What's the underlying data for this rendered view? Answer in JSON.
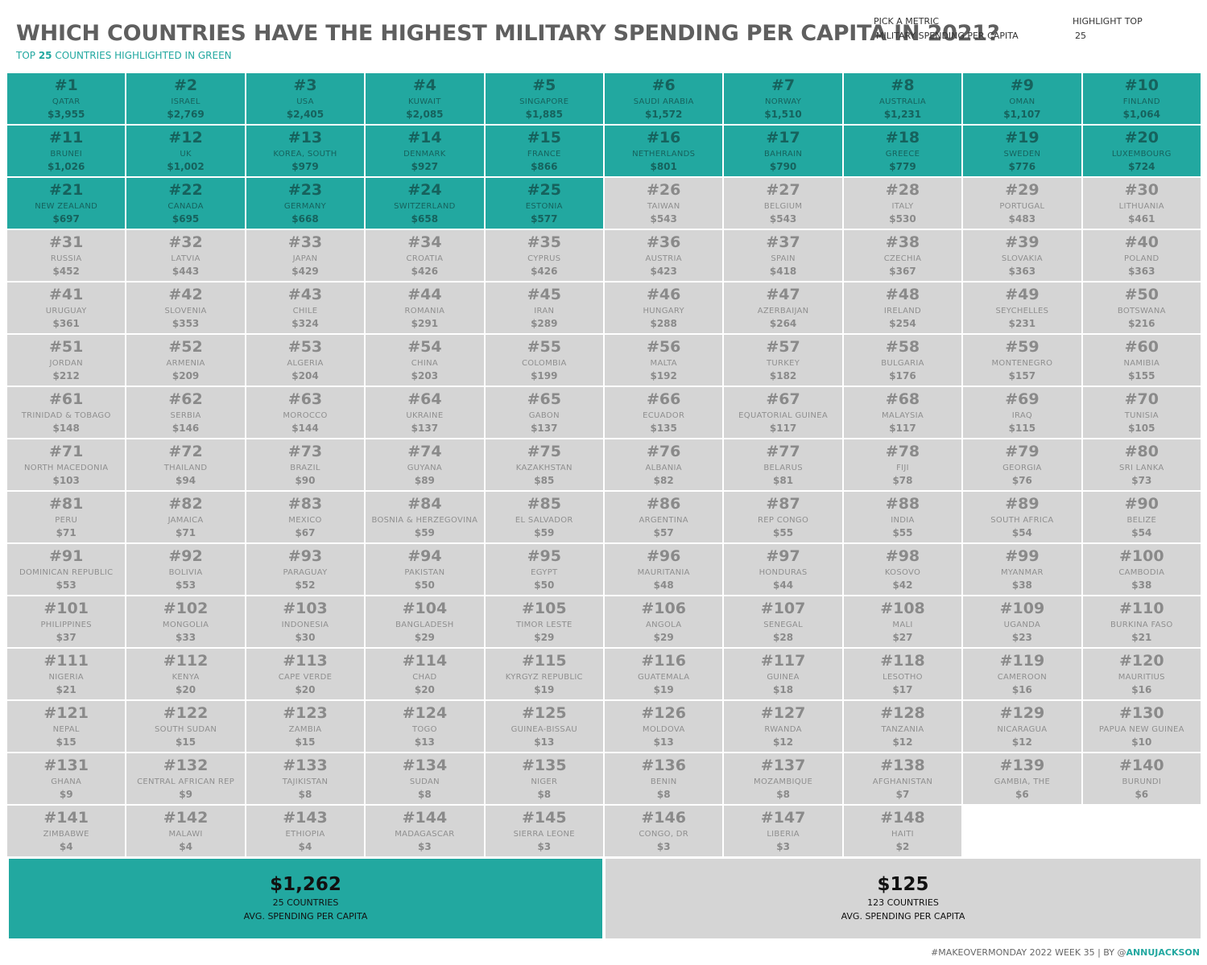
{
  "header": {
    "title": "WHICH COUNTRIES HAVE THE HIGHEST MILITARY SPENDING PER CAPITA IN 2021?",
    "subtitle_prefix": "TOP ",
    "subtitle_count": "25",
    "subtitle_suffix": " COUNTRIES HIGHLIGHTED IN GREEN"
  },
  "controls": {
    "metric_label": "PICK A METRIC",
    "metric_value": "MILITARY SPENDING PER CAPITA",
    "highlight_label": "HIGHLIGHT TOP",
    "highlight_value": "25"
  },
  "colors": {
    "highlight": "#22a8a0",
    "neutral": "#d5d5d5"
  },
  "chart_data": {
    "type": "table",
    "highlight_top": 25,
    "columns": 10,
    "countries": [
      {
        "rank": "#1",
        "name": "QATAR",
        "value": "$3,955"
      },
      {
        "rank": "#2",
        "name": "ISRAEL",
        "value": "$2,769"
      },
      {
        "rank": "#3",
        "name": "USA",
        "value": "$2,405"
      },
      {
        "rank": "#4",
        "name": "KUWAIT",
        "value": "$2,085"
      },
      {
        "rank": "#5",
        "name": "SINGAPORE",
        "value": "$1,885"
      },
      {
        "rank": "#6",
        "name": "SAUDI ARABIA",
        "value": "$1,572"
      },
      {
        "rank": "#7",
        "name": "NORWAY",
        "value": "$1,510"
      },
      {
        "rank": "#8",
        "name": "AUSTRALIA",
        "value": "$1,231"
      },
      {
        "rank": "#9",
        "name": "OMAN",
        "value": "$1,107"
      },
      {
        "rank": "#10",
        "name": "FINLAND",
        "value": "$1,064"
      },
      {
        "rank": "#11",
        "name": "BRUNEI",
        "value": "$1,026"
      },
      {
        "rank": "#12",
        "name": "UK",
        "value": "$1,002"
      },
      {
        "rank": "#13",
        "name": "KOREA, SOUTH",
        "value": "$979"
      },
      {
        "rank": "#14",
        "name": "DENMARK",
        "value": "$927"
      },
      {
        "rank": "#15",
        "name": "FRANCE",
        "value": "$866"
      },
      {
        "rank": "#16",
        "name": "NETHERLANDS",
        "value": "$801"
      },
      {
        "rank": "#17",
        "name": "BAHRAIN",
        "value": "$790"
      },
      {
        "rank": "#18",
        "name": "GREECE",
        "value": "$779"
      },
      {
        "rank": "#19",
        "name": "SWEDEN",
        "value": "$776"
      },
      {
        "rank": "#20",
        "name": "LUXEMBOURG",
        "value": "$724"
      },
      {
        "rank": "#21",
        "name": "NEW ZEALAND",
        "value": "$697"
      },
      {
        "rank": "#22",
        "name": "CANADA",
        "value": "$695"
      },
      {
        "rank": "#23",
        "name": "GERMANY",
        "value": "$668"
      },
      {
        "rank": "#24",
        "name": "SWITZERLAND",
        "value": "$658"
      },
      {
        "rank": "#25",
        "name": "ESTONIA",
        "value": "$577"
      },
      {
        "rank": "#26",
        "name": "TAIWAN",
        "value": "$543"
      },
      {
        "rank": "#27",
        "name": "BELGIUM",
        "value": "$543"
      },
      {
        "rank": "#28",
        "name": "ITALY",
        "value": "$530"
      },
      {
        "rank": "#29",
        "name": "PORTUGAL",
        "value": "$483"
      },
      {
        "rank": "#30",
        "name": "LITHUANIA",
        "value": "$461"
      },
      {
        "rank": "#31",
        "name": "RUSSIA",
        "value": "$452"
      },
      {
        "rank": "#32",
        "name": "LATVIA",
        "value": "$443"
      },
      {
        "rank": "#33",
        "name": "JAPAN",
        "value": "$429"
      },
      {
        "rank": "#34",
        "name": "CROATIA",
        "value": "$426"
      },
      {
        "rank": "#35",
        "name": "CYPRUS",
        "value": "$426"
      },
      {
        "rank": "#36",
        "name": "AUSTRIA",
        "value": "$423"
      },
      {
        "rank": "#37",
        "name": "SPAIN",
        "value": "$418"
      },
      {
        "rank": "#38",
        "name": "CZECHIA",
        "value": "$367"
      },
      {
        "rank": "#39",
        "name": "SLOVAKIA",
        "value": "$363"
      },
      {
        "rank": "#40",
        "name": "POLAND",
        "value": "$363"
      },
      {
        "rank": "#41",
        "name": "URUGUAY",
        "value": "$361"
      },
      {
        "rank": "#42",
        "name": "SLOVENIA",
        "value": "$353"
      },
      {
        "rank": "#43",
        "name": "CHILE",
        "value": "$324"
      },
      {
        "rank": "#44",
        "name": "ROMANIA",
        "value": "$291"
      },
      {
        "rank": "#45",
        "name": "IRAN",
        "value": "$289"
      },
      {
        "rank": "#46",
        "name": "HUNGARY",
        "value": "$288"
      },
      {
        "rank": "#47",
        "name": "AZERBAIJAN",
        "value": "$264"
      },
      {
        "rank": "#48",
        "name": "IRELAND",
        "value": "$254"
      },
      {
        "rank": "#49",
        "name": "SEYCHELLES",
        "value": "$231"
      },
      {
        "rank": "#50",
        "name": "BOTSWANA",
        "value": "$216"
      },
      {
        "rank": "#51",
        "name": "JORDAN",
        "value": "$212"
      },
      {
        "rank": "#52",
        "name": "ARMENIA",
        "value": "$209"
      },
      {
        "rank": "#53",
        "name": "ALGERIA",
        "value": "$204"
      },
      {
        "rank": "#54",
        "name": "CHINA",
        "value": "$203"
      },
      {
        "rank": "#55",
        "name": "COLOMBIA",
        "value": "$199"
      },
      {
        "rank": "#56",
        "name": "MALTA",
        "value": "$192"
      },
      {
        "rank": "#57",
        "name": "TURKEY",
        "value": "$182"
      },
      {
        "rank": "#58",
        "name": "BULGARIA",
        "value": "$176"
      },
      {
        "rank": "#59",
        "name": "MONTENEGRO",
        "value": "$157"
      },
      {
        "rank": "#60",
        "name": "NAMIBIA",
        "value": "$155"
      },
      {
        "rank": "#61",
        "name": "TRINIDAD & TOBAGO",
        "value": "$148"
      },
      {
        "rank": "#62",
        "name": "SERBIA",
        "value": "$146"
      },
      {
        "rank": "#63",
        "name": "MOROCCO",
        "value": "$144"
      },
      {
        "rank": "#64",
        "name": "UKRAINE",
        "value": "$137"
      },
      {
        "rank": "#65",
        "name": "GABON",
        "value": "$137"
      },
      {
        "rank": "#66",
        "name": "ECUADOR",
        "value": "$135"
      },
      {
        "rank": "#67",
        "name": "EQUATORIAL GUINEA",
        "value": "$117"
      },
      {
        "rank": "#68",
        "name": "MALAYSIA",
        "value": "$117"
      },
      {
        "rank": "#69",
        "name": "IRAQ",
        "value": "$115"
      },
      {
        "rank": "#70",
        "name": "TUNISIA",
        "value": "$105"
      },
      {
        "rank": "#71",
        "name": "NORTH MACEDONIA",
        "value": "$103"
      },
      {
        "rank": "#72",
        "name": "THAILAND",
        "value": "$94"
      },
      {
        "rank": "#73",
        "name": "BRAZIL",
        "value": "$90"
      },
      {
        "rank": "#74",
        "name": "GUYANA",
        "value": "$89"
      },
      {
        "rank": "#75",
        "name": "KAZAKHSTAN",
        "value": "$85"
      },
      {
        "rank": "#76",
        "name": "ALBANIA",
        "value": "$82"
      },
      {
        "rank": "#77",
        "name": "BELARUS",
        "value": "$81"
      },
      {
        "rank": "#78",
        "name": "FIJI",
        "value": "$78"
      },
      {
        "rank": "#79",
        "name": "GEORGIA",
        "value": "$76"
      },
      {
        "rank": "#80",
        "name": "SRI LANKA",
        "value": "$73"
      },
      {
        "rank": "#81",
        "name": "PERU",
        "value": "$71"
      },
      {
        "rank": "#82",
        "name": "JAMAICA",
        "value": "$71"
      },
      {
        "rank": "#83",
        "name": "MEXICO",
        "value": "$67"
      },
      {
        "rank": "#84",
        "name": "BOSNIA & HERZEGOVINA",
        "value": "$59"
      },
      {
        "rank": "#85",
        "name": "EL SALVADOR",
        "value": "$59"
      },
      {
        "rank": "#86",
        "name": "ARGENTINA",
        "value": "$57"
      },
      {
        "rank": "#87",
        "name": "REP CONGO",
        "value": "$55"
      },
      {
        "rank": "#88",
        "name": "INDIA",
        "value": "$55"
      },
      {
        "rank": "#89",
        "name": "SOUTH AFRICA",
        "value": "$54"
      },
      {
        "rank": "#90",
        "name": "BELIZE",
        "value": "$54"
      },
      {
        "rank": "#91",
        "name": "DOMINICAN REPUBLIC",
        "value": "$53"
      },
      {
        "rank": "#92",
        "name": "BOLIVIA",
        "value": "$53"
      },
      {
        "rank": "#93",
        "name": "PARAGUAY",
        "value": "$52"
      },
      {
        "rank": "#94",
        "name": "PAKISTAN",
        "value": "$50"
      },
      {
        "rank": "#95",
        "name": "EGYPT",
        "value": "$50"
      },
      {
        "rank": "#96",
        "name": "MAURITANIA",
        "value": "$48"
      },
      {
        "rank": "#97",
        "name": "HONDURAS",
        "value": "$44"
      },
      {
        "rank": "#98",
        "name": "KOSOVO",
        "value": "$42"
      },
      {
        "rank": "#99",
        "name": "MYANMAR",
        "value": "$38"
      },
      {
        "rank": "#100",
        "name": "CAMBODIA",
        "value": "$38"
      },
      {
        "rank": "#101",
        "name": "PHILIPPINES",
        "value": "$37"
      },
      {
        "rank": "#102",
        "name": "MONGOLIA",
        "value": "$33"
      },
      {
        "rank": "#103",
        "name": "INDONESIA",
        "value": "$30"
      },
      {
        "rank": "#104",
        "name": "BANGLADESH",
        "value": "$29"
      },
      {
        "rank": "#105",
        "name": "TIMOR LESTE",
        "value": "$29"
      },
      {
        "rank": "#106",
        "name": "ANGOLA",
        "value": "$29"
      },
      {
        "rank": "#107",
        "name": "SENEGAL",
        "value": "$28"
      },
      {
        "rank": "#108",
        "name": "MALI",
        "value": "$27"
      },
      {
        "rank": "#109",
        "name": "UGANDA",
        "value": "$23"
      },
      {
        "rank": "#110",
        "name": "BURKINA FASO",
        "value": "$21"
      },
      {
        "rank": "#111",
        "name": "NIGERIA",
        "value": "$21"
      },
      {
        "rank": "#112",
        "name": "KENYA",
        "value": "$20"
      },
      {
        "rank": "#113",
        "name": "CAPE VERDE",
        "value": "$20"
      },
      {
        "rank": "#114",
        "name": "CHAD",
        "value": "$20"
      },
      {
        "rank": "#115",
        "name": "KYRGYZ REPUBLIC",
        "value": "$19"
      },
      {
        "rank": "#116",
        "name": "GUATEMALA",
        "value": "$19"
      },
      {
        "rank": "#117",
        "name": "GUINEA",
        "value": "$18"
      },
      {
        "rank": "#118",
        "name": "LESOTHO",
        "value": "$17"
      },
      {
        "rank": "#119",
        "name": "CAMEROON",
        "value": "$16"
      },
      {
        "rank": "#120",
        "name": "MAURITIUS",
        "value": "$16"
      },
      {
        "rank": "#121",
        "name": "NEPAL",
        "value": "$15"
      },
      {
        "rank": "#122",
        "name": "SOUTH SUDAN",
        "value": "$15"
      },
      {
        "rank": "#123",
        "name": "ZAMBIA",
        "value": "$15"
      },
      {
        "rank": "#124",
        "name": "TOGO",
        "value": "$13"
      },
      {
        "rank": "#125",
        "name": "GUINEA-BISSAU",
        "value": "$13"
      },
      {
        "rank": "#126",
        "name": "MOLDOVA",
        "value": "$13"
      },
      {
        "rank": "#127",
        "name": "RWANDA",
        "value": "$12"
      },
      {
        "rank": "#128",
        "name": "TANZANIA",
        "value": "$12"
      },
      {
        "rank": "#129",
        "name": "NICARAGUA",
        "value": "$12"
      },
      {
        "rank": "#130",
        "name": "PAPUA NEW GUINEA",
        "value": "$10"
      },
      {
        "rank": "#131",
        "name": "GHANA",
        "value": "$9"
      },
      {
        "rank": "#132",
        "name": "CENTRAL AFRICAN REP",
        "value": "$9"
      },
      {
        "rank": "#133",
        "name": "TAJIKISTAN",
        "value": "$8"
      },
      {
        "rank": "#134",
        "name": "SUDAN",
        "value": "$8"
      },
      {
        "rank": "#135",
        "name": "NIGER",
        "value": "$8"
      },
      {
        "rank": "#136",
        "name": "BENIN",
        "value": "$8"
      },
      {
        "rank": "#137",
        "name": "MOZAMBIQUE",
        "value": "$8"
      },
      {
        "rank": "#138",
        "name": "AFGHANISTAN",
        "value": "$7"
      },
      {
        "rank": "#139",
        "name": "GAMBIA, THE",
        "value": "$6"
      },
      {
        "rank": "#140",
        "name": "BURUNDI",
        "value": "$6"
      },
      {
        "rank": "#141",
        "name": "ZIMBABWE",
        "value": "$4"
      },
      {
        "rank": "#142",
        "name": "MALAWI",
        "value": "$4"
      },
      {
        "rank": "#143",
        "name": "ETHIOPIA",
        "value": "$4"
      },
      {
        "rank": "#144",
        "name": "MADAGASCAR",
        "value": "$3"
      },
      {
        "rank": "#145",
        "name": "SIERRA LEONE",
        "value": "$3"
      },
      {
        "rank": "#146",
        "name": "CONGO, DR",
        "value": "$3"
      },
      {
        "rank": "#147",
        "name": "LIBERIA",
        "value": "$3"
      },
      {
        "rank": "#148",
        "name": "HAITI",
        "value": "$2"
      }
    ]
  },
  "summary": {
    "top": {
      "value": "$1,262",
      "count": "25 COUNTRIES",
      "label": "AVG. SPENDING PER CAPITA"
    },
    "rest": {
      "value": "$125",
      "count": "123 COUNTRIES",
      "label": "AVG. SPENDING PER CAPITA"
    }
  },
  "footer": {
    "text": "#MAKEOVERMONDAY 2022 WEEK 35 | BY @",
    "handle": "ANNUJACKSON"
  }
}
